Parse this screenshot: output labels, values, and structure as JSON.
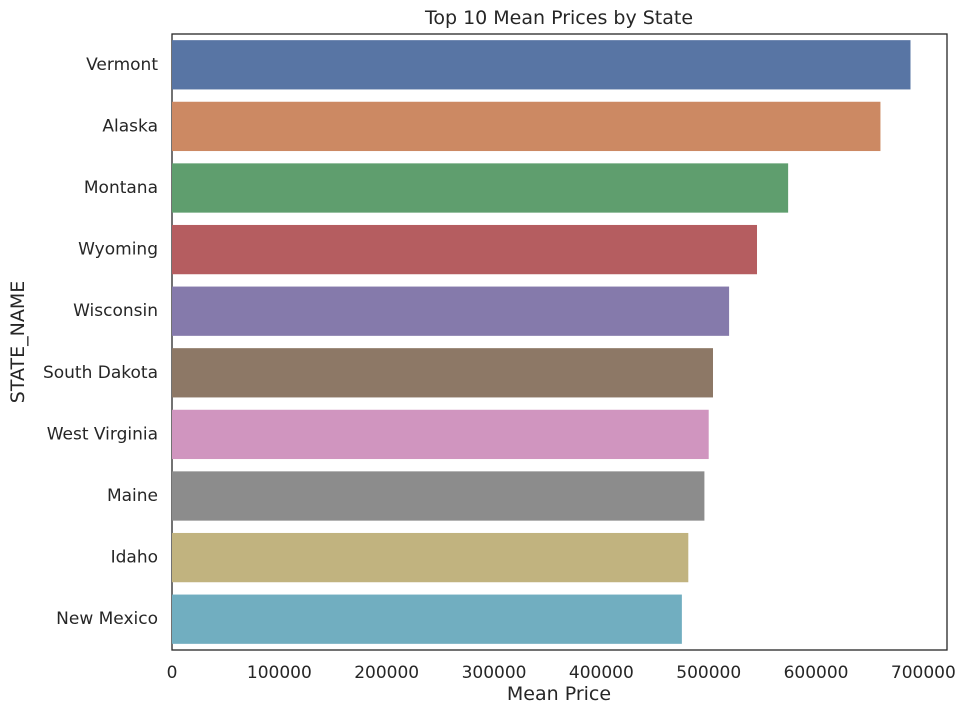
{
  "chart_data": {
    "type": "bar",
    "orientation": "horizontal",
    "title": "Top 10 Mean Prices by State",
    "xlabel": "Mean Price",
    "ylabel": "STATE_NAME",
    "categories": [
      "Vermont",
      "Alaska",
      "Montana",
      "Wyoming",
      "Wisconsin",
      "South Dakota",
      "West Virginia",
      "Maine",
      "Idaho",
      "New Mexico"
    ],
    "values": [
      688000,
      660000,
      574000,
      545000,
      519000,
      504000,
      500000,
      496000,
      481000,
      475000
    ],
    "colors": [
      "#5875a4",
      "#cc8963",
      "#5f9e6e",
      "#b55d60",
      "#857aab",
      "#8d7866",
      "#d095bf",
      "#8c8c8c",
      "#c1b37f",
      "#71aec0"
    ],
    "xlim": [
      0,
      722000
    ],
    "xticks": [
      0,
      100000,
      200000,
      300000,
      400000,
      500000,
      600000,
      700000
    ],
    "xtick_labels": [
      "0",
      "100000",
      "200000",
      "300000",
      "400000",
      "500000",
      "600000",
      "700000"
    ],
    "grid": false,
    "legend": "none"
  }
}
